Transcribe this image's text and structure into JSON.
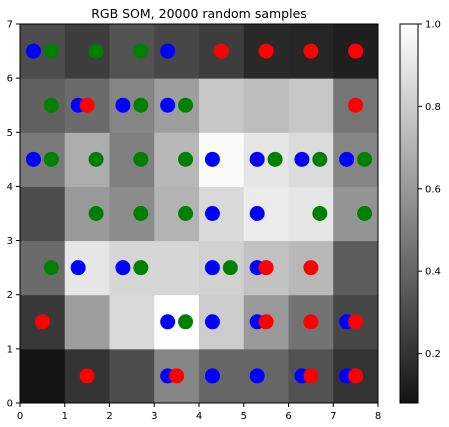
{
  "chart_data": {
    "type": "heatmap",
    "title": "RGB SOM, 20000 random samples",
    "xlim": [
      0,
      8
    ],
    "ylim": [
      0,
      7
    ],
    "xticks": [
      "0",
      "1",
      "2",
      "3",
      "4",
      "5",
      "6",
      "7",
      "8"
    ],
    "yticks": [
      "0",
      "1",
      "2",
      "3",
      "4",
      "5",
      "6",
      "7"
    ],
    "grid_values": [
      [
        0.08,
        0.2,
        0.3,
        0.52,
        0.4,
        0.4,
        0.32,
        0.2
      ],
      [
        0.22,
        0.62,
        0.85,
        1.0,
        0.8,
        0.6,
        0.45,
        0.28
      ],
      [
        0.42,
        0.9,
        0.84,
        0.84,
        0.82,
        0.76,
        0.72,
        0.36
      ],
      [
        0.3,
        0.6,
        0.55,
        0.7,
        0.85,
        0.92,
        0.9,
        0.58
      ],
      [
        0.48,
        0.68,
        0.5,
        0.72,
        0.98,
        0.9,
        0.86,
        0.52
      ],
      [
        0.38,
        0.42,
        0.52,
        0.62,
        0.78,
        0.74,
        0.78,
        0.46
      ],
      [
        0.3,
        0.24,
        0.32,
        0.28,
        0.24,
        0.16,
        0.15,
        0.12
      ]
    ],
    "colorbar": {
      "min": 0.08,
      "max": 1.0,
      "ticks": [
        "0.2",
        "0.4",
        "0.6",
        "0.8",
        "1.0"
      ],
      "tick_values": [
        0.2,
        0.4,
        0.6,
        0.8,
        1.0
      ]
    },
    "markers": [
      {
        "color": "blue",
        "hex": "#0000ff",
        "points": [
          [
            0.3,
            6.5
          ],
          [
            3.3,
            6.5
          ],
          [
            1.3,
            5.5
          ],
          [
            2.3,
            5.5
          ],
          [
            3.3,
            5.5
          ],
          [
            0.3,
            4.5
          ],
          [
            4.3,
            4.5
          ],
          [
            5.3,
            4.5
          ],
          [
            6.3,
            4.5
          ],
          [
            7.3,
            4.5
          ],
          [
            4.3,
            3.5
          ],
          [
            5.3,
            3.5
          ],
          [
            1.3,
            2.5
          ],
          [
            2.3,
            2.5
          ],
          [
            4.3,
            2.5
          ],
          [
            5.3,
            2.5
          ],
          [
            3.3,
            1.5
          ],
          [
            4.3,
            1.5
          ],
          [
            5.3,
            1.5
          ],
          [
            7.3,
            1.5
          ],
          [
            3.3,
            0.5
          ],
          [
            4.3,
            0.5
          ],
          [
            5.3,
            0.5
          ],
          [
            6.3,
            0.5
          ],
          [
            7.3,
            0.5
          ]
        ]
      },
      {
        "color": "green",
        "hex": "#008000",
        "points": [
          [
            0.7,
            6.5
          ],
          [
            1.7,
            6.5
          ],
          [
            2.7,
            6.5
          ],
          [
            0.7,
            5.5
          ],
          [
            2.7,
            5.5
          ],
          [
            3.7,
            5.5
          ],
          [
            0.7,
            4.5
          ],
          [
            1.7,
            4.5
          ],
          [
            2.7,
            4.5
          ],
          [
            3.7,
            4.5
          ],
          [
            5.7,
            4.5
          ],
          [
            6.7,
            4.5
          ],
          [
            7.7,
            4.5
          ],
          [
            1.7,
            3.5
          ],
          [
            2.7,
            3.5
          ],
          [
            3.7,
            3.5
          ],
          [
            6.7,
            3.5
          ],
          [
            7.7,
            3.5
          ],
          [
            0.7,
            2.5
          ],
          [
            2.7,
            2.5
          ],
          [
            4.7,
            2.5
          ],
          [
            3.7,
            1.5
          ]
        ]
      },
      {
        "color": "red",
        "hex": "#ff0000",
        "points": [
          [
            4.5,
            6.5
          ],
          [
            5.5,
            6.5
          ],
          [
            6.5,
            6.5
          ],
          [
            7.5,
            6.5
          ],
          [
            1.5,
            5.5
          ],
          [
            7.5,
            5.5
          ],
          [
            5.5,
            2.5
          ],
          [
            6.5,
            2.5
          ],
          [
            0.5,
            1.5
          ],
          [
            5.5,
            1.5
          ],
          [
            6.5,
            1.5
          ],
          [
            7.5,
            1.5
          ],
          [
            1.5,
            0.5
          ],
          [
            3.5,
            0.5
          ],
          [
            6.5,
            0.5
          ],
          [
            7.5,
            0.5
          ]
        ]
      }
    ]
  }
}
